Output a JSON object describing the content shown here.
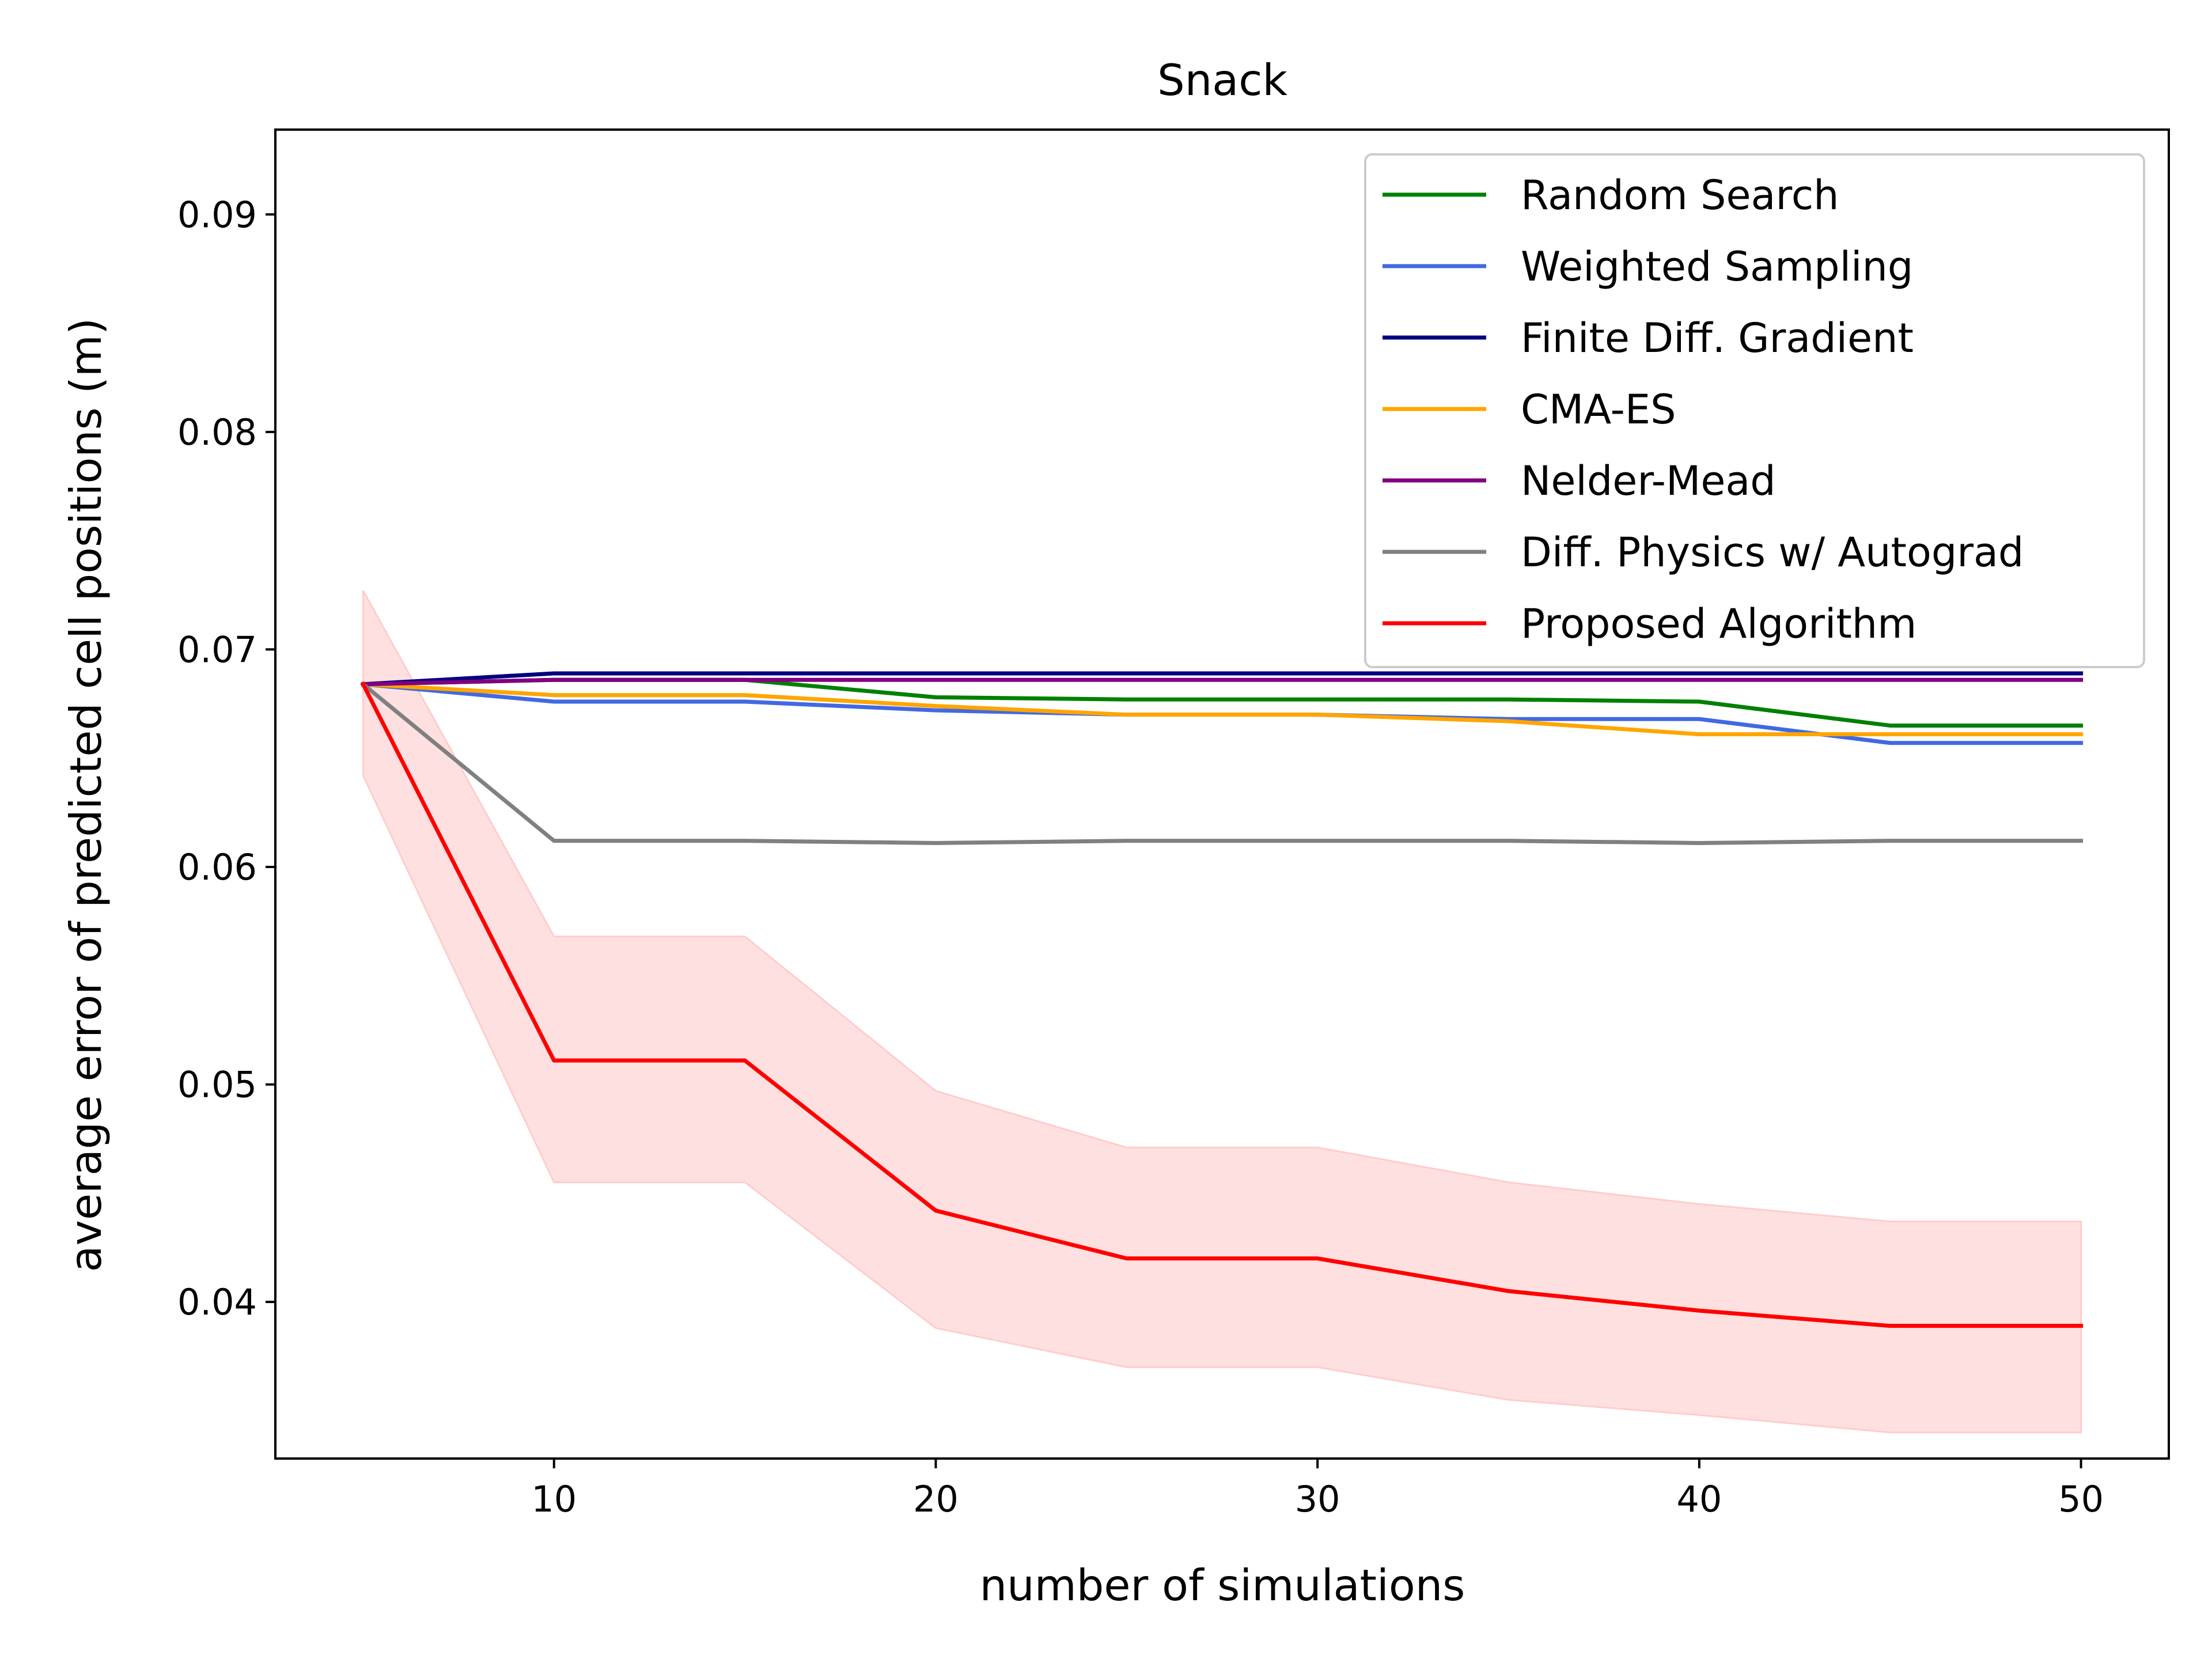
{
  "chart_data": {
    "type": "line",
    "title": "Snack",
    "xlabel": "number of simulations",
    "ylabel": "average error of predicted cell positions (m)",
    "xlim": [
      2.7,
      52.3
    ],
    "ylim": [
      0.0328,
      0.0939
    ],
    "xticks": [
      10,
      20,
      30,
      40,
      50
    ],
    "yticks": [
      0.04,
      0.05,
      0.06,
      0.07,
      0.08,
      0.09
    ],
    "xtick_labels": [
      "10",
      "20",
      "30",
      "40",
      "50"
    ],
    "ytick_labels": [
      "0.04",
      "0.05",
      "0.06",
      "0.07",
      "0.08",
      "0.09"
    ],
    "x": [
      5,
      10,
      15,
      20,
      25,
      30,
      35,
      40,
      45,
      50
    ],
    "grid": false,
    "legend_position": "top-right",
    "series": [
      {
        "name": "Random Search",
        "color": "#008000",
        "values": [
          0.0684,
          0.0686,
          0.0686,
          0.0678,
          0.0677,
          0.0677,
          0.0677,
          0.0676,
          0.0665,
          0.0665
        ]
      },
      {
        "name": "Weighted Sampling",
        "color": "#4169e1",
        "values": [
          0.0684,
          0.0676,
          0.0676,
          0.0672,
          0.067,
          0.067,
          0.0668,
          0.0668,
          0.0657,
          0.0657
        ]
      },
      {
        "name": "Finite Diff. Gradient",
        "color": "#000080",
        "values": [
          0.0684,
          0.0689,
          0.0689,
          0.0689,
          0.0689,
          0.0689,
          0.0689,
          0.0689,
          0.0689,
          0.0689
        ]
      },
      {
        "name": "CMA-ES",
        "color": "#ffa500",
        "values": [
          0.0684,
          0.0679,
          0.0679,
          0.0674,
          0.067,
          0.067,
          0.0667,
          0.0661,
          0.0661,
          0.0661
        ]
      },
      {
        "name": "Nelder-Mead",
        "color": "#800080",
        "values": [
          0.0684,
          0.0686,
          0.0686,
          0.0686,
          0.0686,
          0.0686,
          0.0686,
          0.0686,
          0.0686,
          0.0686
        ]
      },
      {
        "name": "Diff. Physics w/ Autograd",
        "color": "#808080",
        "values": [
          0.0684,
          0.0612,
          0.0612,
          0.0611,
          0.0612,
          0.0612,
          0.0612,
          0.0611,
          0.0612,
          0.0612
        ]
      },
      {
        "name": "Proposed Algorithm",
        "color": "#ff0000",
        "values": [
          0.0684,
          0.0511,
          0.0511,
          0.0442,
          0.042,
          0.042,
          0.0405,
          0.0396,
          0.0389,
          0.0389
        ],
        "band_lower": [
          0.0642,
          0.0455,
          0.0455,
          0.0388,
          0.037,
          0.037,
          0.0355,
          0.0348,
          0.034,
          0.034
        ],
        "band_upper": [
          0.0727,
          0.0568,
          0.0568,
          0.0497,
          0.0471,
          0.0471,
          0.0455,
          0.0445,
          0.0437,
          0.0437
        ],
        "band_color": "#ffcccc"
      }
    ]
  }
}
